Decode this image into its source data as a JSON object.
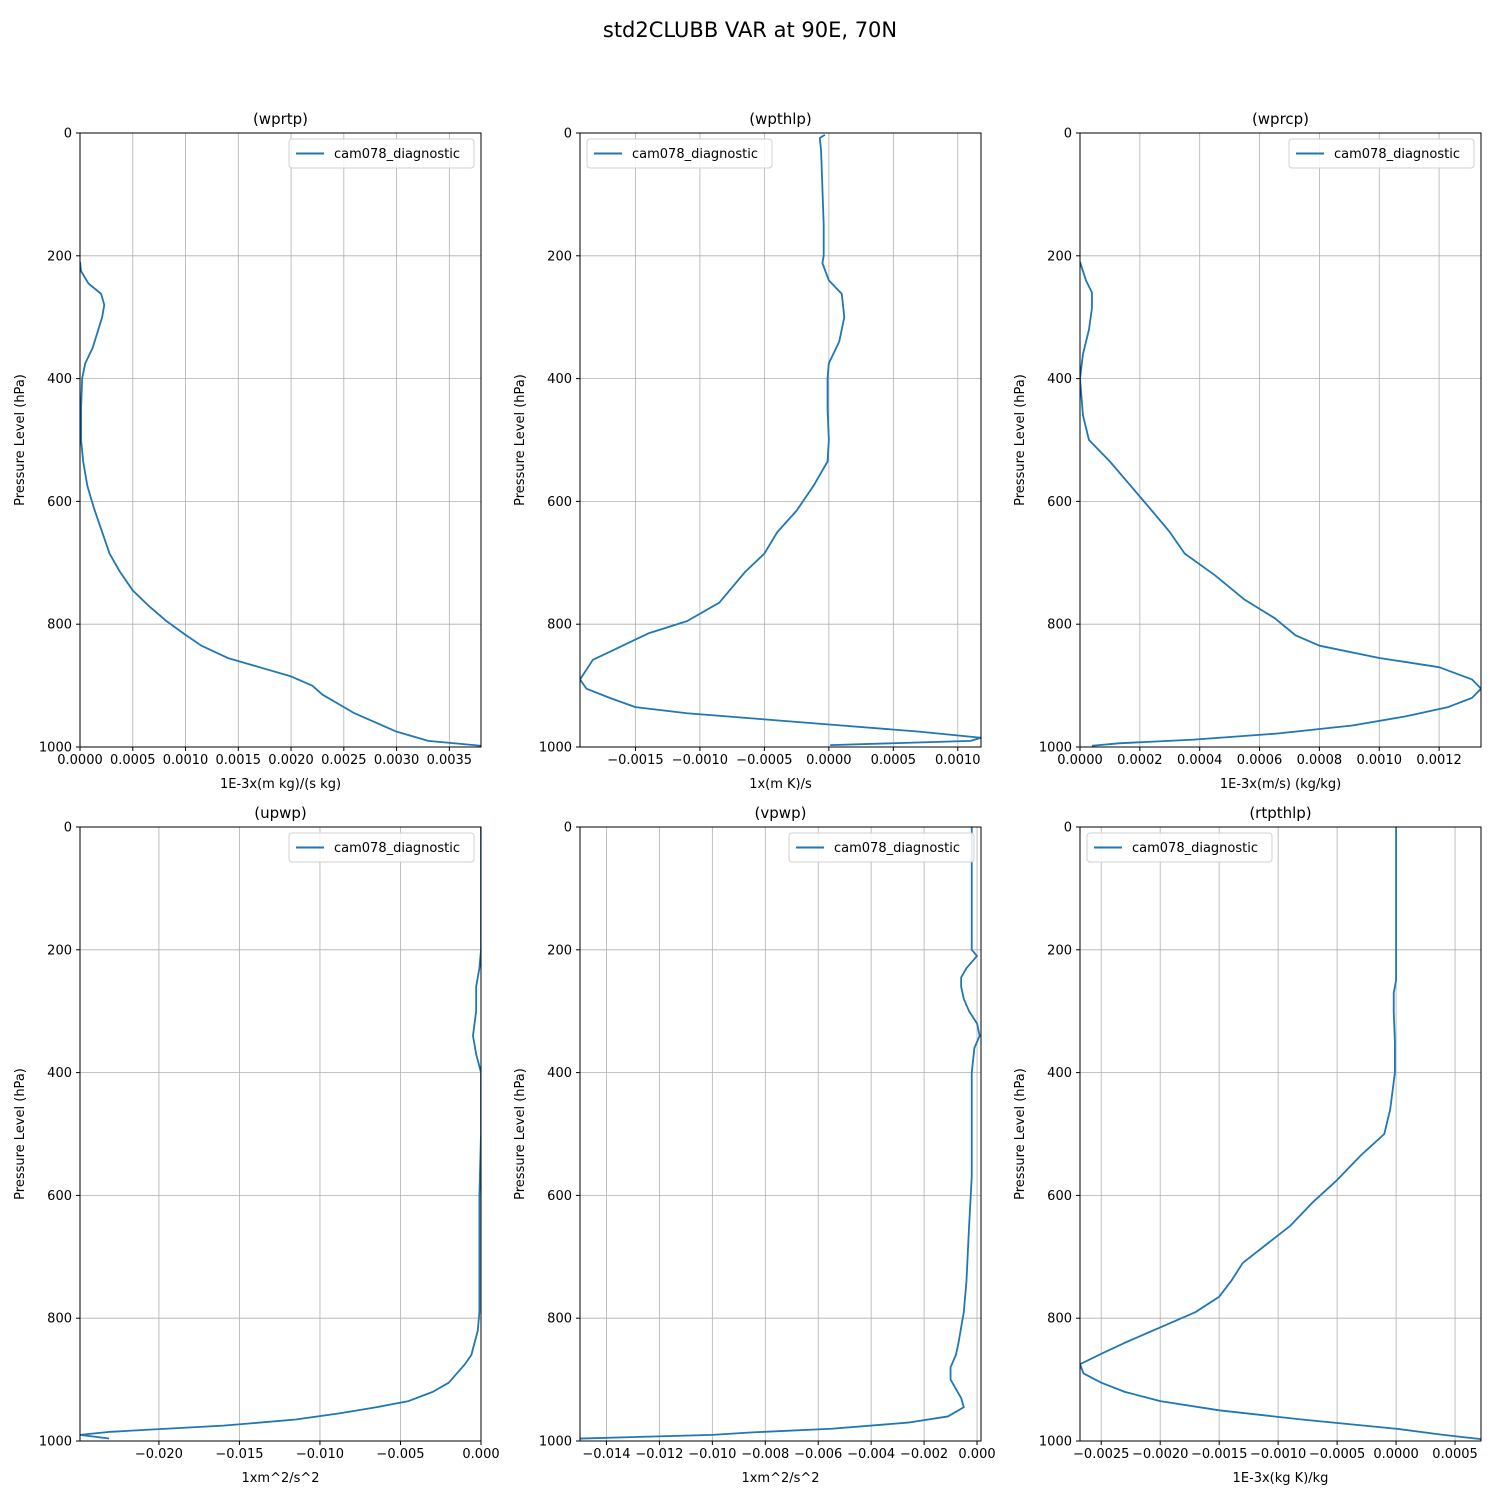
{
  "figure": {
    "title": "std2CLUBB VAR at 90E, 70N",
    "series_color": "#1f77b4"
  },
  "chart_data": [
    {
      "type": "line",
      "title": "(wprtp)",
      "xlabel": "1E-3x(m kg)/(s kg)",
      "ylabel": "Pressure Level (hPa)",
      "xlim": [
        0,
        0.0038
      ],
      "ylim": [
        1000,
        0
      ],
      "y_inverted": true,
      "grid": true,
      "legend_position": "top-right",
      "xticks": [
        "0.0000",
        "0.0005",
        "0.0010",
        "0.0015",
        "0.0020",
        "0.0025",
        "0.0030",
        "0.0035"
      ],
      "xtick_values": [
        0,
        0.0005,
        0.001,
        0.0015,
        0.002,
        0.0025,
        0.003,
        0.0035
      ],
      "yticks": [
        "0",
        "200",
        "400",
        "600",
        "800",
        "1000"
      ],
      "ytick_values": [
        0,
        200,
        400,
        600,
        800,
        1000
      ],
      "series": [
        {
          "name": "cam078_diagnostic",
          "x": [
            0,
            1e-05,
            8e-05,
            0.0002,
            0.00023,
            0.00021,
            0.00012,
            5e-05,
            2e-05,
            1e-05,
            1e-05,
            3e-05,
            7e-05,
            0.00013,
            0.00021,
            0.00028,
            0.00038,
            0.0005,
            0.00065,
            0.00082,
            0.00098,
            0.00115,
            0.0014,
            0.0017,
            0.002,
            0.0022,
            0.0023,
            0.00245,
            0.0026,
            0.0028,
            0.003,
            0.0033,
            0.0038
          ],
          "y": [
            210,
            225,
            245,
            262,
            280,
            300,
            350,
            375,
            400,
            450,
            500,
            535,
            575,
            610,
            650,
            685,
            715,
            745,
            770,
            795,
            815,
            835,
            855,
            870,
            885,
            900,
            915,
            930,
            945,
            960,
            975,
            990,
            998
          ]
        }
      ]
    },
    {
      "type": "line",
      "title": "(wpthlp)",
      "xlabel": "1x(m K)/s",
      "ylabel": "Pressure Level (hPa)",
      "xlim": [
        -0.00193,
        0.00118
      ],
      "ylim": [
        1000,
        0
      ],
      "y_inverted": true,
      "grid": true,
      "legend_position": "top-left",
      "xticks": [
        "−0.0015",
        "−0.0010",
        "−0.0005",
        "0.0000",
        "0.0005",
        "0.0010"
      ],
      "xtick_values": [
        -0.0015,
        -0.001,
        -0.0005,
        0,
        0.0005,
        0.001
      ],
      "yticks": [
        "0",
        "200",
        "400",
        "600",
        "800",
        "1000"
      ],
      "ytick_values": [
        0,
        200,
        400,
        600,
        800,
        1000
      ],
      "series": [
        {
          "name": "cam078_diagnostic",
          "x": [
            -3e-05,
            -7e-05,
            -6e-05,
            -5e-05,
            -4e-05,
            -4e-05,
            -5e-05,
            0,
            0.0001,
            0.00012,
            8e-05,
            0,
            -1e-05,
            -1e-05,
            0,
            -1e-05,
            -0.00012,
            -0.00025,
            -0.0004,
            -0.0005,
            -0.00065,
            -0.00085,
            -0.0011,
            -0.0014,
            -0.00165,
            -0.00183,
            -0.00193,
            -0.00188,
            -0.0017,
            -0.0015,
            -0.0011,
            -0.0005,
            0.0001,
            0.0007,
            0.00118,
            0.0011,
            1e-05
          ],
          "y": [
            3,
            8,
            30,
            90,
            150,
            200,
            212,
            240,
            262,
            300,
            340,
            375,
            400,
            450,
            500,
            535,
            575,
            615,
            650,
            685,
            715,
            765,
            795,
            815,
            840,
            858,
            890,
            905,
            920,
            935,
            945,
            955,
            965,
            975,
            985,
            990,
            997
          ]
        }
      ]
    },
    {
      "type": "line",
      "title": "(wprcp)",
      "xlabel": "1E-3x(m/s) (kg/kg)",
      "ylabel": "Pressure Level (hPa)",
      "xlim": [
        0,
        0.00134
      ],
      "ylim": [
        1000,
        0
      ],
      "y_inverted": true,
      "grid": true,
      "legend_position": "top-right",
      "xticks": [
        "0.0000",
        "0.0002",
        "0.0004",
        "0.0006",
        "0.0008",
        "0.0010",
        "0.0012"
      ],
      "xtick_values": [
        0,
        0.0002,
        0.0004,
        0.0006,
        0.0008,
        0.001,
        0.0012
      ],
      "yticks": [
        "0",
        "200",
        "400",
        "600",
        "800",
        "1000"
      ],
      "ytick_values": [
        0,
        200,
        400,
        600,
        800,
        1000
      ],
      "series": [
        {
          "name": "cam078_diagnostic",
          "x": [
            0,
            2e-05,
            4e-05,
            4e-05,
            3e-05,
            1e-05,
            0,
            1e-05,
            3e-05,
            0.0001,
            0.00017,
            0.00024,
            0.0003,
            0.00035,
            0.00045,
            0.00055,
            0.00065,
            0.00072,
            0.0008,
            0.001,
            0.0012,
            0.00131,
            0.00134,
            0.00131,
            0.00123,
            0.00109,
            0.00091,
            0.00066,
            0.00038,
            0.00013,
            4e-05
          ],
          "y": [
            210,
            240,
            260,
            285,
            320,
            360,
            400,
            460,
            500,
            535,
            575,
            615,
            650,
            685,
            720,
            760,
            790,
            818,
            835,
            855,
            870,
            890,
            905,
            920,
            935,
            950,
            965,
            978,
            988,
            994,
            998
          ]
        }
      ]
    },
    {
      "type": "line",
      "title": "(upwp)",
      "xlabel": "1xm^2/s^2",
      "ylabel": "Pressure Level (hPa)",
      "xlim": [
        -0.0249,
        0
      ],
      "ylim": [
        1000,
        0
      ],
      "y_inverted": true,
      "grid": true,
      "legend_position": "top-right",
      "xticks": [
        "−0.020",
        "−0.015",
        "−0.010",
        "−0.005",
        "0.000"
      ],
      "xtick_values": [
        -0.02,
        -0.015,
        -0.01,
        -0.005,
        0
      ],
      "yticks": [
        "0",
        "200",
        "400",
        "600",
        "800",
        "1000"
      ],
      "ytick_values": [
        0,
        200,
        400,
        600,
        800,
        1000
      ],
      "series": [
        {
          "name": "cam078_diagnostic",
          "x": [
            0,
            0,
            -0.0001,
            -0.0003,
            -0.0003,
            -0.0004,
            -0.0005,
            -0.0003,
            0,
            0,
            -0.0001,
            -0.0001,
            -0.0001,
            -0.0002,
            -0.0004,
            -0.0006,
            -0.001,
            -0.0015,
            -0.002,
            -0.003,
            -0.0045,
            -0.0065,
            -0.0088,
            -0.0115,
            -0.016,
            -0.023,
            -0.0249,
            -0.0231
          ],
          "y": [
            0,
            200,
            230,
            260,
            300,
            320,
            340,
            370,
            400,
            500,
            600,
            700,
            790,
            820,
            840,
            860,
            875,
            890,
            905,
            920,
            935,
            945,
            955,
            965,
            975,
            985,
            990,
            996
          ]
        }
      ]
    },
    {
      "type": "line",
      "title": "(vpwp)",
      "xlabel": "1xm^2/s^2",
      "ylabel": "Pressure Level (hPa)",
      "xlim": [
        -0.015,
        0.00015
      ],
      "ylim": [
        1000,
        0
      ],
      "y_inverted": true,
      "grid": true,
      "legend_position": "top-right",
      "xticks": [
        "−0.014",
        "−0.012",
        "−0.010",
        "−0.008",
        "−0.006",
        "−0.004",
        "−0.002",
        "0.000"
      ],
      "xtick_values": [
        -0.014,
        -0.012,
        -0.01,
        -0.008,
        -0.006,
        -0.004,
        -0.002,
        0
      ],
      "yticks": [
        "0",
        "200",
        "400",
        "600",
        "800",
        "1000"
      ],
      "ytick_values": [
        0,
        200,
        400,
        600,
        800,
        1000
      ],
      "series": [
        {
          "name": "cam078_diagnostic",
          "x": [
            -0.0002,
            -0.0002,
            -0.0002,
            0,
            -0.0004,
            -0.0006,
            -0.0006,
            -0.0005,
            -0.0003,
            0,
            0.0001,
            -0.0001,
            -0.0002,
            -0.0002,
            -0.0002,
            -0.0002,
            -0.0003,
            -0.0004,
            -0.0005,
            -0.0007,
            -0.0008,
            -0.001,
            -0.001,
            -0.001,
            -0.0008,
            -0.0006,
            -0.0005,
            -0.0011,
            -0.0026,
            -0.0055,
            -0.0085,
            -0.01,
            -0.015
          ],
          "y": [
            0,
            100,
            200,
            210,
            230,
            245,
            260,
            280,
            300,
            320,
            340,
            360,
            400,
            450,
            500,
            570,
            650,
            740,
            790,
            840,
            860,
            880,
            890,
            900,
            915,
            930,
            945,
            960,
            970,
            980,
            986,
            990,
            996
          ]
        }
      ]
    },
    {
      "type": "line",
      "title": "(rtpthlp)",
      "xlabel": "1E-3x(kg K)/kg",
      "ylabel": "Pressure Level (hPa)",
      "xlim": [
        -0.00268,
        0.00072
      ],
      "ylim": [
        1000,
        0
      ],
      "y_inverted": true,
      "grid": true,
      "legend_position": "top-left",
      "xticks": [
        "−0.0025",
        "−0.0020",
        "−0.0015",
        "−0.0010",
        "−0.0005",
        "0.0000",
        "0.0005"
      ],
      "xtick_values": [
        -0.0025,
        -0.002,
        -0.0015,
        -0.001,
        -0.0005,
        0,
        0.0005
      ],
      "yticks": [
        "0",
        "200",
        "400",
        "600",
        "800",
        "1000"
      ],
      "ytick_values": [
        0,
        200,
        400,
        600,
        800,
        1000
      ],
      "series": [
        {
          "name": "cam078_diagnostic",
          "x": [
            0,
            0,
            0,
            0,
            -2e-05,
            -2e-05,
            -1e-05,
            -1e-05,
            -5e-05,
            -0.0001,
            -0.0003,
            -0.0005,
            -0.0007,
            -0.0009,
            -0.0011,
            -0.0013,
            -0.0014,
            -0.0015,
            -0.0017,
            -0.002,
            -0.0023,
            -0.0025,
            -0.00268,
            -0.00265,
            -0.0025,
            -0.0023,
            -0.002,
            -0.0015,
            -0.0008,
            0,
            0.0004,
            0.00072
          ],
          "y": [
            0,
            100,
            200,
            250,
            270,
            300,
            350,
            400,
            460,
            500,
            535,
            575,
            610,
            650,
            680,
            710,
            740,
            765,
            790,
            815,
            840,
            858,
            875,
            890,
            905,
            920,
            935,
            950,
            965,
            980,
            990,
            997
          ]
        }
      ]
    }
  ]
}
